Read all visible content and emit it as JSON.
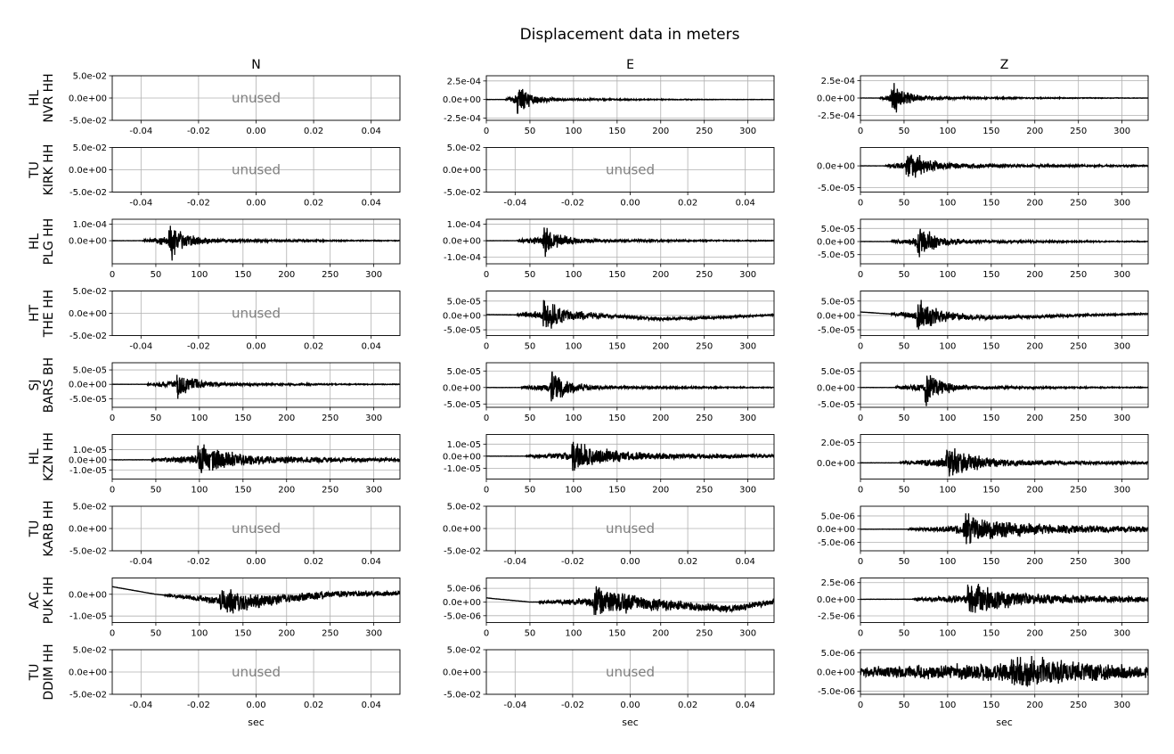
{
  "chart_data": {
    "type": "line",
    "title": "Displacement data in meters",
    "columns": [
      "N",
      "E",
      "Z"
    ],
    "xlabel": "sec",
    "unused_label": "unused",
    "line_color": "#000000",
    "grid": true,
    "time_xlim": [
      0,
      330
    ],
    "time_xticks": [
      0,
      50,
      100,
      150,
      200,
      250,
      300
    ],
    "unused_xlim": [
      -0.05,
      0.05
    ],
    "unused_xticks": [
      "-0.04",
      "-0.02",
      "0.00",
      "0.02",
      "0.04"
    ],
    "unused_ylim": [
      -0.05,
      0.05
    ],
    "unused_yticks": [
      "5.0e-02",
      "0.0e+00",
      "-5.0e-02"
    ],
    "stations": [
      {
        "net": "HL",
        "sta": "NVR HH",
        "panels": [
          {
            "unused": true
          },
          {
            "unused": false,
            "ylim": [
              -0.00028,
              0.00032
            ],
            "yticks": [
              [
                0.00025,
                "2.5e-04"
              ],
              [
                0,
                "0.0e+00"
              ],
              [
                -0.00025,
                "-2.5e-04"
              ]
            ],
            "trace": {
              "onset": 22,
              "peak_t": 37,
              "amp": 0.00029,
              "decay": 14,
              "coda": 0.12,
              "freq": 1.1,
              "seed": 11
            }
          },
          {
            "unused": false,
            "ylim": [
              -0.00032,
              0.00032
            ],
            "yticks": [
              [
                0.00025,
                "2.5e-04"
              ],
              [
                0,
                "0.0e+00"
              ],
              [
                -0.00025,
                "-2.5e-04"
              ]
            ],
            "trace": {
              "onset": 22,
              "peak_t": 37,
              "amp": 0.00028,
              "decay": 16,
              "coda": 0.14,
              "freq": 1.0,
              "seed": 12
            }
          }
        ]
      },
      {
        "net": "TU",
        "sta": "KIRK HH",
        "panels": [
          {
            "unused": true
          },
          {
            "unused": true
          },
          {
            "unused": false,
            "ylim": [
              -6e-05,
              4.2e-05
            ],
            "yticks": [
              [
                0,
                "0.0e+00"
              ],
              [
                -5e-05,
                "-5.0e-05"
              ]
            ],
            "trace": {
              "onset": 28,
              "peak_t": 54,
              "amp": 4.5e-05,
              "decay": 22,
              "coda": 0.2,
              "freq": 0.9,
              "seed": 13
            }
          }
        ]
      },
      {
        "net": "HL",
        "sta": "PLG HH",
        "panels": [
          {
            "unused": false,
            "ylim": [
              -0.00014,
              0.00013
            ],
            "yticks": [
              [
                0.0001,
                "1.0e-04"
              ],
              [
                0,
                "0.0e+00"
              ]
            ],
            "trace": {
              "onset": 35,
              "peak_t": 67,
              "amp": 0.00013,
              "decay": 18,
              "coda": 0.15,
              "freq": 1.0,
              "seed": 21
            }
          },
          {
            "unused": false,
            "ylim": [
              -0.00014,
              0.00013
            ],
            "yticks": [
              [
                0.0001,
                "1.0e-04"
              ],
              [
                0,
                "0.0e+00"
              ],
              [
                -0.0001,
                "-1.0e-04"
              ]
            ],
            "trace": {
              "onset": 35,
              "peak_t": 67,
              "amp": 0.00012,
              "decay": 18,
              "coda": 0.15,
              "freq": 1.0,
              "seed": 22
            }
          },
          {
            "unused": false,
            "ylim": [
              -8.5e-05,
              8.5e-05
            ],
            "yticks": [
              [
                5e-05,
                "5.0e-05"
              ],
              [
                0,
                "0.0e+00"
              ],
              [
                -5e-05,
                "-5.0e-05"
              ]
            ],
            "trace": {
              "onset": 35,
              "peak_t": 67,
              "amp": 8e-05,
              "decay": 18,
              "coda": 0.15,
              "freq": 1.0,
              "seed": 23
            }
          }
        ]
      },
      {
        "net": "HT",
        "sta": "THE HH",
        "panels": [
          {
            "unused": true
          },
          {
            "unused": false,
            "ylim": [
              -7e-05,
              8.5e-05
            ],
            "yticks": [
              [
                5e-05,
                "5.0e-05"
              ],
              [
                0,
                "0.0e+00"
              ],
              [
                -5e-05,
                "-5.0e-05"
              ]
            ],
            "trace": {
              "onset": 35,
              "peak_t": 67,
              "amp": 7.5e-05,
              "decay": 20,
              "coda": 0.2,
              "freq": 1.0,
              "seed": 31,
              "drift": [
                [
                  0,
                  3e-06
                ],
                [
                  120,
                  0.0
                ],
                [
                  200,
                  -1.2e-05
                ],
                [
                  260,
                  -8e-06
                ],
                [
                  330,
                  2e-06
                ]
              ]
            }
          },
          {
            "unused": false,
            "ylim": [
              -7e-05,
              8.5e-05
            ],
            "yticks": [
              [
                5e-05,
                "5.0e-05"
              ],
              [
                0,
                "0.0e+00"
              ],
              [
                -5e-05,
                "-5.0e-05"
              ]
            ],
            "trace": {
              "onset": 35,
              "peak_t": 67,
              "amp": 7.5e-05,
              "decay": 20,
              "coda": 0.2,
              "freq": 1.0,
              "seed": 32,
              "drift": [
                [
                  0,
                  1.2e-05
                ],
                [
                  60,
                  0.0
                ],
                [
                  150,
                  -8e-06
                ],
                [
                  250,
                  0.0
                ],
                [
                  330,
                  6e-06
                ]
              ]
            }
          }
        ]
      },
      {
        "net": "SJ",
        "sta": "BARS BH",
        "panels": [
          {
            "unused": false,
            "ylim": [
              -8e-05,
              7.5e-05
            ],
            "yticks": [
              [
                5e-05,
                "5.0e-05"
              ],
              [
                0,
                "0.0e+00"
              ],
              [
                -5e-05,
                "-5.0e-05"
              ]
            ],
            "trace": {
              "onset": 40,
              "peak_t": 76,
              "amp": 6e-05,
              "decay": 18,
              "coda": 0.15,
              "freq": 1.0,
              "seed": 41
            }
          },
          {
            "unused": false,
            "ylim": [
              -6e-05,
              7.5e-05
            ],
            "yticks": [
              [
                5e-05,
                "5.0e-05"
              ],
              [
                0,
                "0.0e+00"
              ],
              [
                -5e-05,
                "-5.0e-05"
              ]
            ],
            "trace": {
              "onset": 40,
              "peak_t": 76,
              "amp": 6.5e-05,
              "decay": 18,
              "coda": 0.15,
              "freq": 1.0,
              "seed": 42
            }
          },
          {
            "unused": false,
            "ylim": [
              -6e-05,
              7.5e-05
            ],
            "yticks": [
              [
                5e-05,
                "5.0e-05"
              ],
              [
                0,
                "0.0e+00"
              ],
              [
                -5e-05,
                "-5.0e-05"
              ]
            ],
            "trace": {
              "onset": 40,
              "peak_t": 76,
              "amp": 6e-05,
              "decay": 18,
              "coda": 0.15,
              "freq": 1.0,
              "seed": 43
            }
          }
        ]
      },
      {
        "net": "HL",
        "sta": "KZN HH",
        "panels": [
          {
            "unused": false,
            "ylim": [
              -1.9e-05,
              2.5e-05
            ],
            "yticks": [
              [
                1e-05,
                "1.0e-05"
              ],
              [
                0,
                "0.0e+00"
              ],
              [
                -1e-05,
                "-1.0e-05"
              ]
            ],
            "trace": {
              "onset": 45,
              "peak_t": 100,
              "amp": 2.2e-05,
              "decay": 30,
              "coda": 0.25,
              "freq": 0.8,
              "seed": 51
            }
          },
          {
            "unused": false,
            "ylim": [
              -1.9e-05,
              1.8e-05
            ],
            "yticks": [
              [
                1e-05,
                "1.0e-05"
              ],
              [
                0,
                "0.0e+00"
              ],
              [
                -1e-05,
                "-1.0e-05"
              ]
            ],
            "trace": {
              "onset": 45,
              "peak_t": 100,
              "amp": 1.6e-05,
              "decay": 35,
              "coda": 0.25,
              "freq": 0.8,
              "seed": 52
            }
          },
          {
            "unused": false,
            "ylim": [
              -1.6e-05,
              2.8e-05
            ],
            "yticks": [
              [
                2e-05,
                "2.0e-05"
              ],
              [
                0,
                "0.0e+00"
              ]
            ],
            "trace": {
              "onset": 45,
              "peak_t": 100,
              "amp": 2.2e-05,
              "decay": 30,
              "coda": 0.2,
              "freq": 0.8,
              "seed": 53
            }
          }
        ]
      },
      {
        "net": "TU",
        "sta": "KARB HH",
        "panels": [
          {
            "unused": true
          },
          {
            "unused": true
          },
          {
            "unused": false,
            "ylim": [
              -8.2e-06,
              8.7e-06
            ],
            "yticks": [
              [
                5e-06,
                "5.0e-06"
              ],
              [
                0,
                "0.0e+00"
              ],
              [
                -5e-06,
                "-5.0e-06"
              ]
            ],
            "trace": {
              "onset": 55,
              "peak_t": 120,
              "amp": 7.5e-06,
              "decay": 45,
              "coda": 0.3,
              "freq": 0.8,
              "seed": 61
            }
          }
        ]
      },
      {
        "net": "AC",
        "sta": "PUK HH",
        "panels": [
          {
            "unused": false,
            "ylim": [
              -1.3e-05,
              7.5e-06
            ],
            "yticks": [
              [
                0,
                "0.0e+00"
              ],
              [
                -1e-05,
                "-1.0e-05"
              ]
            ],
            "trace": {
              "onset": 60,
              "peak_t": 125,
              "amp": 8.5e-06,
              "decay": 40,
              "coda": 0.3,
              "freq": 0.6,
              "seed": 71,
              "drift": [
                [
                  0,
                  3.5e-06
                ],
                [
                  50,
                  0.0
                ],
                [
                  150,
                  -4e-06
                ],
                [
                  250,
                  0.0
                ],
                [
                  330,
                  5e-07
                ]
              ]
            }
          },
          {
            "unused": false,
            "ylim": [
              -7.5e-06,
              8.8e-06
            ],
            "yticks": [
              [
                5e-06,
                "5.0e-06"
              ],
              [
                0,
                "0.0e+00"
              ],
              [
                -5e-06,
                "-5.0e-06"
              ]
            ],
            "trace": {
              "onset": 60,
              "peak_t": 125,
              "amp": 7.5e-06,
              "decay": 45,
              "coda": 0.3,
              "freq": 0.6,
              "seed": 72,
              "drift": [
                [
                  0,
                  1.5e-06
                ],
                [
                  50,
                  0.0
                ],
                [
                  150,
                  0.0
                ],
                [
                  280,
                  -2.5e-06
                ],
                [
                  330,
                  0.0
                ]
              ]
            }
          },
          {
            "unused": false,
            "ylim": [
              -3.5e-06,
              3.2e-06
            ],
            "yticks": [
              [
                2.5e-06,
                "2.5e-06"
              ],
              [
                0,
                "0.0e+00"
              ],
              [
                -2.5e-06,
                "-2.5e-06"
              ]
            ],
            "trace": {
              "onset": 60,
              "peak_t": 125,
              "amp": 3e-06,
              "decay": 45,
              "coda": 0.3,
              "freq": 0.7,
              "seed": 73
            }
          }
        ]
      },
      {
        "net": "TU",
        "sta": "DDIM HH",
        "panels": [
          {
            "unused": true
          },
          {
            "unused": true
          },
          {
            "unused": false,
            "ylim": [
              -5.8e-06,
              5.8e-06
            ],
            "yticks": [
              [
                5e-06,
                "5.0e-06"
              ],
              [
                0,
                "0.0e+00"
              ],
              [
                -5e-06,
                "-5.0e-06"
              ]
            ],
            "trace": {
              "onset": 0,
              "peak_t": 175,
              "amp": 5.5e-06,
              "decay": 90,
              "coda": 0.35,
              "freq": 0.8,
              "seed": 81,
              "noise": 0.25
            }
          }
        ]
      }
    ]
  }
}
